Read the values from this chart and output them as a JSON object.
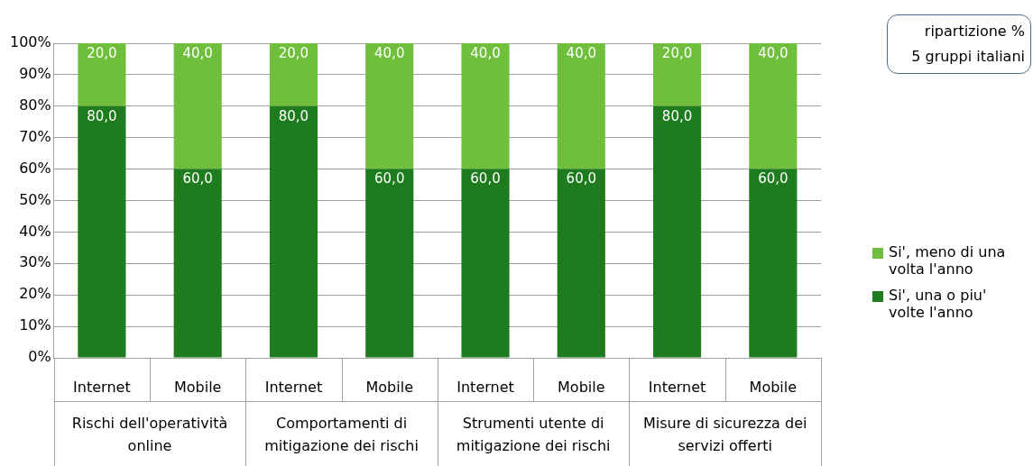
{
  "chart_data": {
    "type": "bar",
    "stacked": true,
    "title": "ripartizione %",
    "subtitle": "5 gruppi italiani",
    "categories": [
      "Internet",
      "Mobile",
      "Internet",
      "Mobile",
      "Internet",
      "Mobile",
      "Internet",
      "Mobile"
    ],
    "annotations": [
      "Rischi dell'operatività online",
      "Comportamenti di mitigazione dei rischi",
      "Strumenti utente di mitigazione dei rischi",
      "Misure di sicurezza dei servizi offerti"
    ],
    "series": [
      {
        "name": "Si', una o piu' volte l'anno",
        "color": "#1e7b1e",
        "values": [
          80,
          60,
          80,
          60,
          60,
          60,
          80,
          60
        ],
        "value_labels": [
          "80,0",
          "60,0",
          "80,0",
          "60,0",
          "60,0",
          "60,0",
          "80,0",
          "60,0"
        ]
      },
      {
        "name": "Si', meno di una volta l'anno",
        "color": "#70bf3c",
        "values": [
          20,
          40,
          20,
          40,
          40,
          40,
          20,
          40
        ],
        "value_labels": [
          "20,0",
          "40,0",
          "20,0",
          "40,0",
          "40,0",
          "40,0",
          "20,0",
          "40,0"
        ]
      }
    ],
    "ylim": [
      0,
      100
    ],
    "yticks": [
      {
        "value": 0,
        "label": "0%"
      },
      {
        "value": 10,
        "label": "10%"
      },
      {
        "value": 20,
        "label": "20%"
      },
      {
        "value": 30,
        "label": "30%"
      },
      {
        "value": 40,
        "label": "40%"
      },
      {
        "value": 50,
        "label": "50%"
      },
      {
        "value": 60,
        "label": "60%"
      },
      {
        "value": 70,
        "label": "70%"
      },
      {
        "value": 80,
        "label": "80%"
      },
      {
        "value": 90,
        "label": "90%"
      },
      {
        "value": 100,
        "label": "100%"
      }
    ],
    "grid": "y",
    "legend": "right"
  }
}
